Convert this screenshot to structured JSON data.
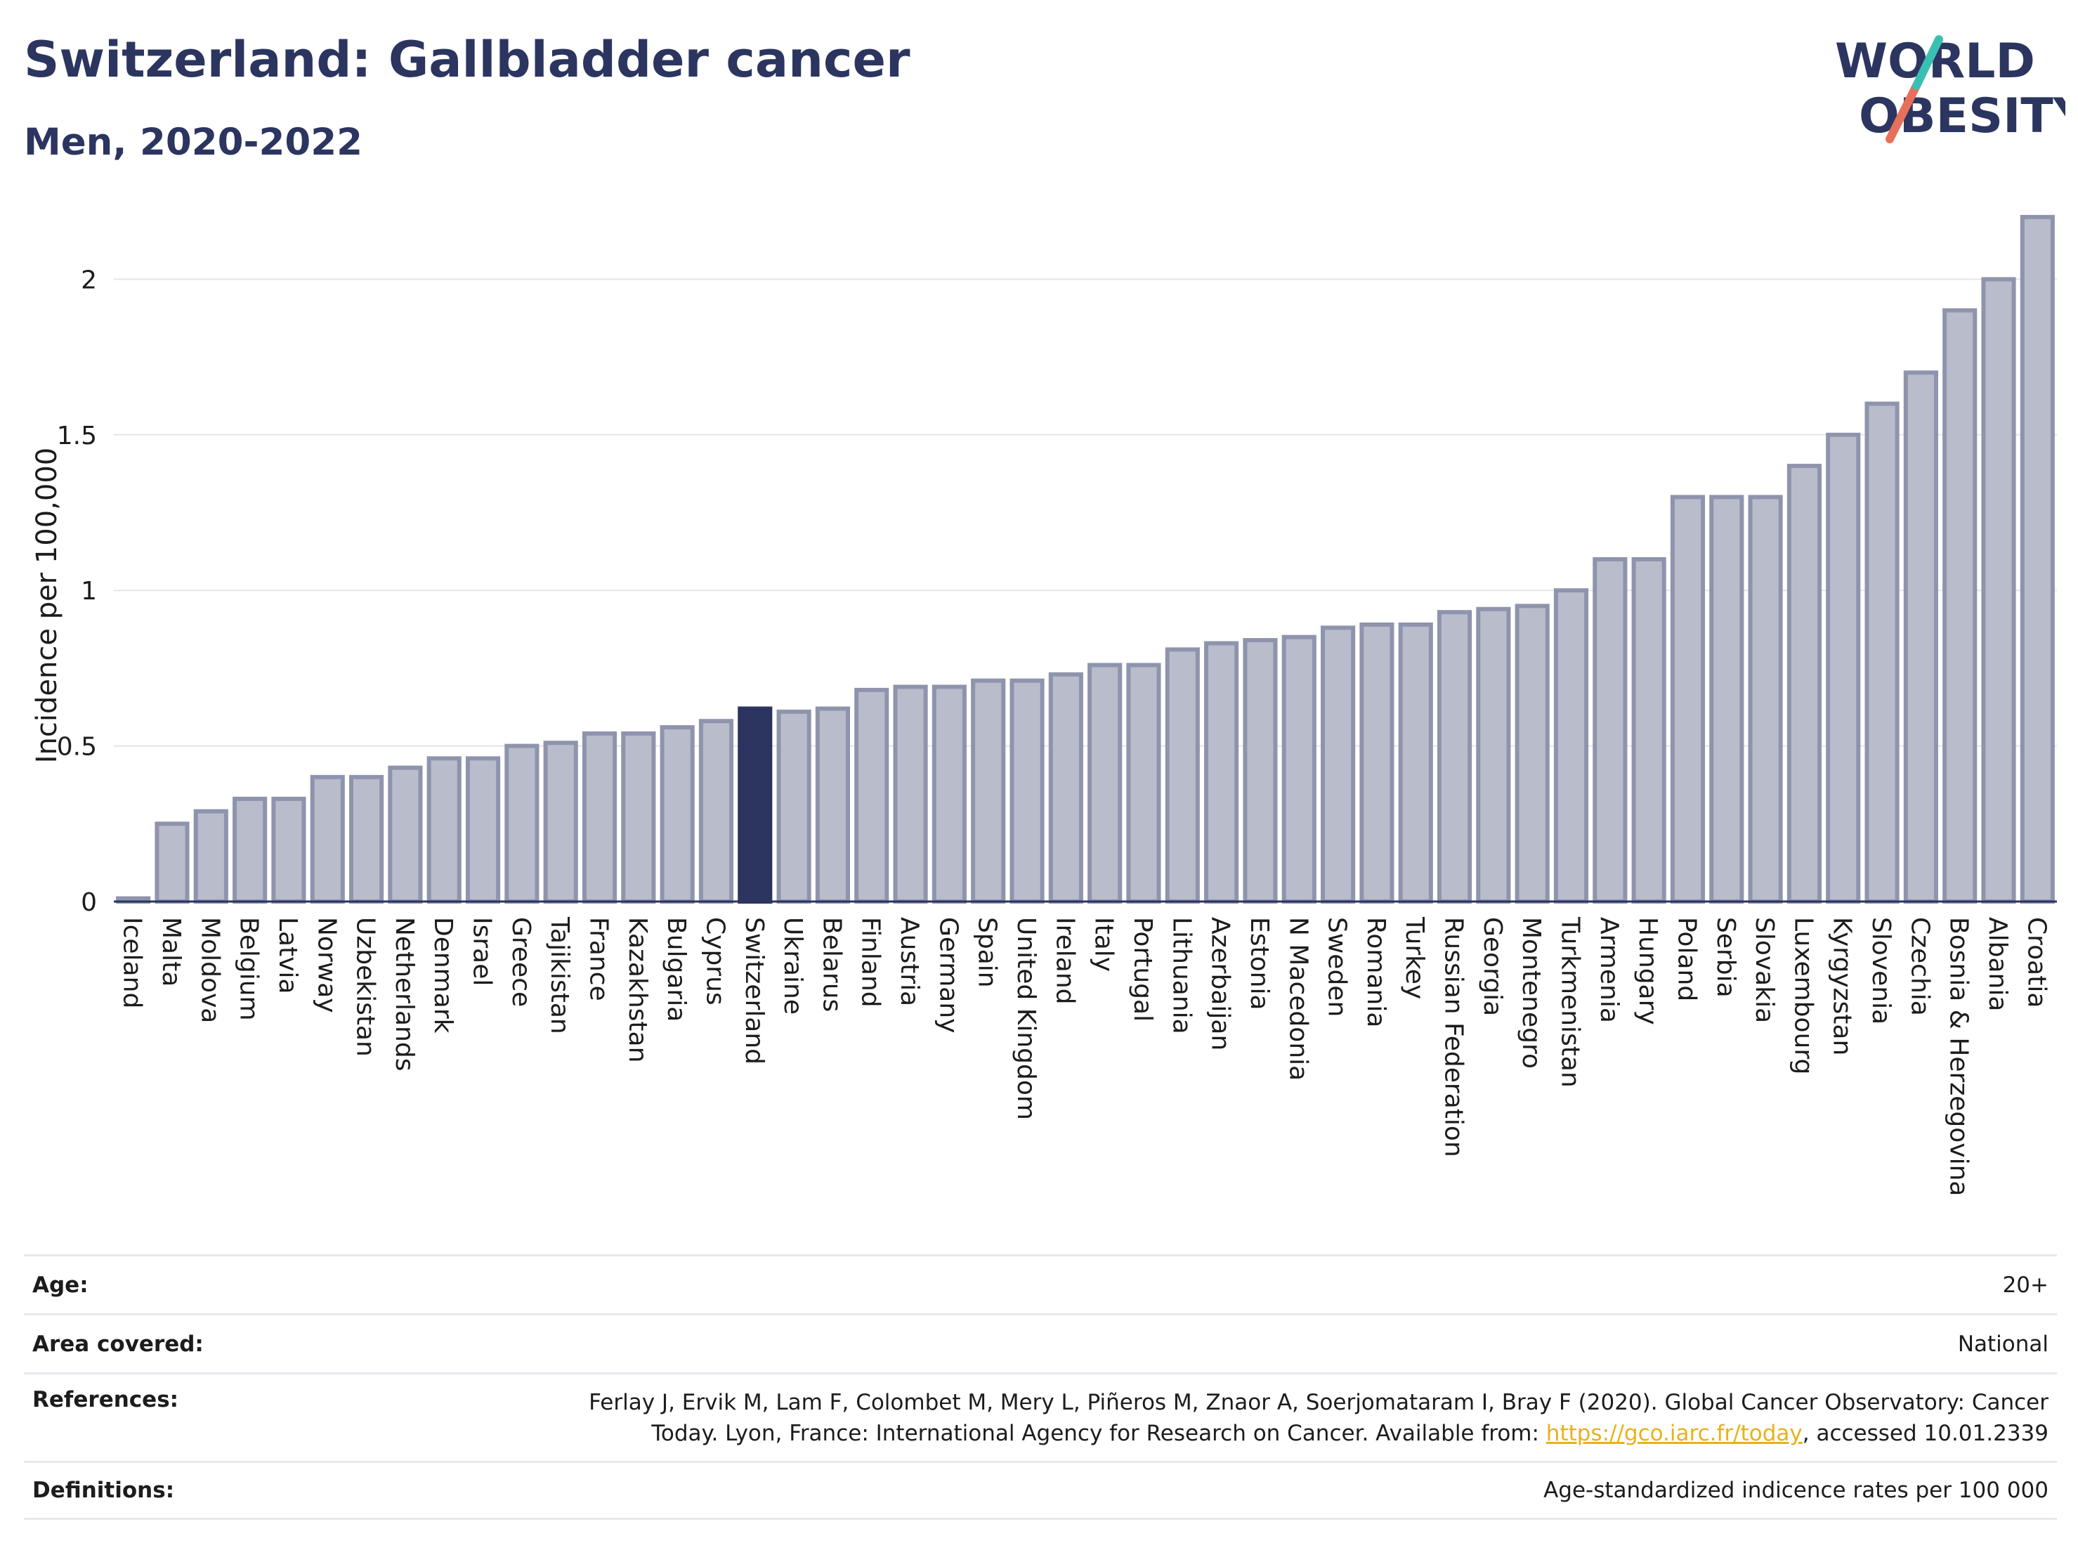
{
  "header": {
    "title": "Switzerland: Gallbladder cancer",
    "subtitle": "Men, 2020-2022"
  },
  "logo": {
    "line1": "WORLD",
    "line2": "OBESITY"
  },
  "colors": {
    "bar": "#b9bccb",
    "bar_border": "#8f94ad",
    "highlight": "#2b3560",
    "title": "#2b3560",
    "grid": "#e3e5ec",
    "link": "#e8b21a"
  },
  "chart_data": {
    "type": "bar",
    "ylabel": "Incidence per 100,000",
    "ylim": [
      0,
      2.22
    ],
    "yticks": [
      0,
      0.5,
      1,
      1.5,
      2
    ],
    "ytick_labels": [
      "0",
      "0.5",
      "1",
      "1.5",
      "2"
    ],
    "grid": true,
    "highlight": "Switzerland",
    "categories": [
      "Iceland",
      "Malta",
      "Moldova",
      "Belgium",
      "Latvia",
      "Norway",
      "Uzbekistan",
      "Netherlands",
      "Denmark",
      "Israel",
      "Greece",
      "Tajikistan",
      "France",
      "Kazakhstan",
      "Bulgaria",
      "Cyprus",
      "Switzerland",
      "Ukraine",
      "Belarus",
      "Finland",
      "Austria",
      "Germany",
      "Spain",
      "United Kingdom",
      "Ireland",
      "Italy",
      "Portugal",
      "Lithuania",
      "Azerbaijan",
      "Estonia",
      "N Macedonia",
      "Sweden",
      "Romania",
      "Turkey",
      "Russian Federation",
      "Georgia",
      "Montenegro",
      "Turkmenistan",
      "Armenia",
      "Hungary",
      "Poland",
      "Serbia",
      "Slovakia",
      "Luxembourg",
      "Kyrgyzstan",
      "Slovenia",
      "Czechia",
      "Bosnia & Herzegovina",
      "Albania",
      "Croatia"
    ],
    "values": [
      0.01,
      0.25,
      0.29,
      0.33,
      0.33,
      0.4,
      0.4,
      0.43,
      0.46,
      0.46,
      0.5,
      0.51,
      0.54,
      0.54,
      0.56,
      0.58,
      0.62,
      0.61,
      0.62,
      0.68,
      0.69,
      0.69,
      0.71,
      0.71,
      0.73,
      0.76,
      0.76,
      0.81,
      0.83,
      0.84,
      0.85,
      0.88,
      0.89,
      0.89,
      0.93,
      0.94,
      0.95,
      1.0,
      1.1,
      1.1,
      1.3,
      1.3,
      1.3,
      1.4,
      1.5,
      1.6,
      1.7,
      1.9,
      2.0,
      2.2
    ]
  },
  "meta": {
    "age_label": "Age:",
    "age_value": "20+",
    "area_label": "Area covered:",
    "area_value": "National",
    "references_label": "References:",
    "references_line1": "Ferlay J, Ervik M, Lam F, Colombet M, Mery L, Piñeros M, Znaor A, Soerjomataram I, Bray F (2020). Global Cancer Observatory: Cancer",
    "references_line2_pre": "Today. Lyon, France: International Agency for Research on Cancer. Available from: ",
    "references_link": "https://gco.iarc.fr/today",
    "references_line2_post": ", accessed 10.01.2339",
    "definitions_label": "Definitions:",
    "definitions_value": "Age-standardized indicence rates per 100 000"
  }
}
